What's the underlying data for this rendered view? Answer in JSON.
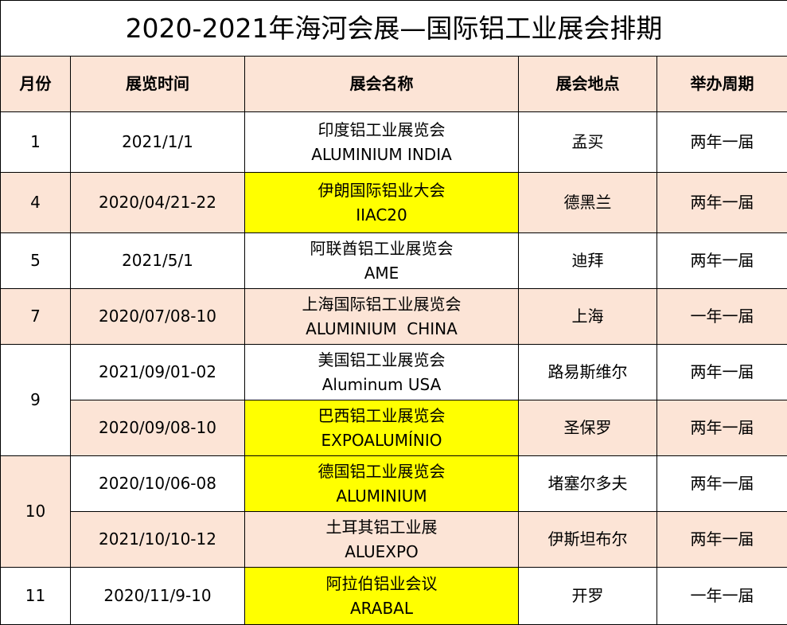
{
  "title": "2020-2021年海河会展—国际铝工业展会排期",
  "headers": [
    "月份",
    "展览时间",
    "展会名称",
    "展会地点",
    "举办周期"
  ],
  "colors": {
    "header_bg": "#FCE4D6",
    "alt_row_bg": "#FCE4D6",
    "highlight": "#FFFF00",
    "border": "#000000"
  },
  "rows": [
    {
      "month": "1",
      "month_rowspan": 1,
      "month_bg": "white",
      "bg": "white",
      "date": "2021/1/1",
      "name_cn": "印度铝工业展览会",
      "name_en": "ALUMINIUM INDIA",
      "highlight": false,
      "location": "孟买",
      "cycle": "两年一届",
      "height": 76
    },
    {
      "month": "4",
      "month_rowspan": 1,
      "month_bg": "pink",
      "bg": "pink",
      "date": "2020/04/21-22",
      "name_cn": "伊朗国际铝业大会",
      "name_en": "IIAC20",
      "highlight": true,
      "location": "德黑兰",
      "cycle": "两年一届",
      "height": 76
    },
    {
      "month": "5",
      "month_rowspan": 1,
      "month_bg": "white",
      "bg": "white",
      "date": "2021/5/1",
      "name_cn": "阿联酋铝工业展览会",
      "name_en": "AME",
      "highlight": false,
      "location": "迪拜",
      "cycle": "两年一届",
      "height": 70
    },
    {
      "month": "7",
      "month_rowspan": 1,
      "month_bg": "pink",
      "bg": "pink",
      "date": "2020/07/08-10",
      "name_cn": "上海国际铝工业展览会",
      "name_en": "ALUMINIUM  CHINA",
      "highlight": false,
      "location": "上海",
      "cycle": "一年一届",
      "height": 70
    },
    {
      "month": "9",
      "month_rowspan": 2,
      "month_bg": "white",
      "bg": "white",
      "date": "2021/09/01-02",
      "name_cn": "美国铝工业展览会",
      "name_en": "Aluminum USA",
      "highlight": false,
      "location": "路易斯维尔",
      "cycle": "两年一届",
      "height": 70
    },
    {
      "month": null,
      "bg": "pink",
      "date": "2020/09/08-10",
      "name_cn": "巴西铝工业展览会",
      "name_en": "EXPOALUMÍNIO",
      "highlight": true,
      "location": "圣保罗",
      "cycle": "两年一届",
      "height": 70
    },
    {
      "month": "10",
      "month_rowspan": 2,
      "month_bg": "pink",
      "bg": "white",
      "date": "2020/10/06-08",
      "name_cn": "德国铝工业展览会",
      "name_en": "ALUMINIUM",
      "highlight": true,
      "location": "堵塞尔多夫",
      "cycle": "两年一届",
      "height": 70
    },
    {
      "month": null,
      "bg": "pink",
      "date": "2021/10/10-12",
      "name_cn": "土耳其铝工业展",
      "name_en": "ALUEXPO",
      "highlight": false,
      "location": "伊斯坦布尔",
      "cycle": "两年一届",
      "height": 70
    },
    {
      "month": "11",
      "month_rowspan": 1,
      "month_bg": "white",
      "bg": "white",
      "date": "2020/11/9-10",
      "name_cn": "阿拉伯铝业会议",
      "name_en": "ARABAL",
      "highlight": true,
      "location": "开罗",
      "cycle": "一年一届",
      "height": 72
    }
  ]
}
